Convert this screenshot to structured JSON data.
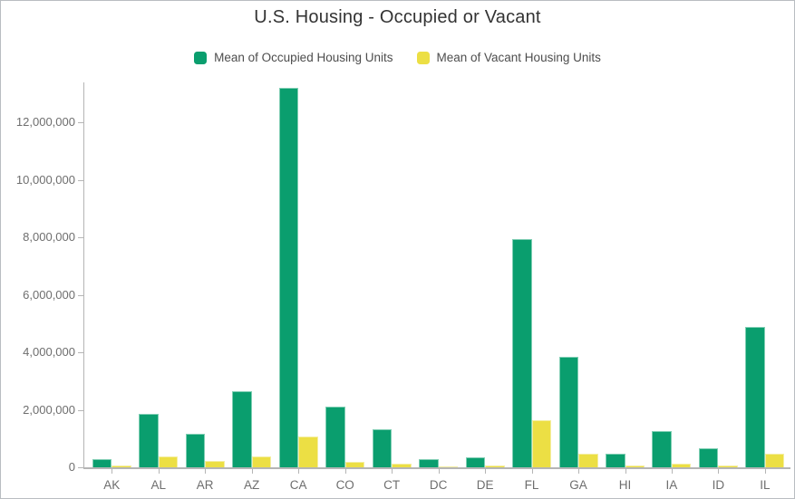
{
  "window": {
    "title": "U.S. Housing - Occupied or Vacant"
  },
  "chart_data": {
    "type": "bar",
    "title": "U.S. Housing - Occupied or Vacant",
    "categories": [
      "AK",
      "AL",
      "AR",
      "AZ",
      "CA",
      "CO",
      "CT",
      "DC",
      "DE",
      "FL",
      "GA",
      "HI",
      "IA",
      "ID",
      "IL"
    ],
    "series": [
      {
        "name": "Mean of Occupied Housing Units",
        "color": "#0a9e6e",
        "border_color": "#7fceb3",
        "values": [
          270000,
          1870000,
          1160000,
          2650000,
          13200000,
          2120000,
          1320000,
          270000,
          360000,
          7950000,
          3840000,
          470000,
          1260000,
          650000,
          4900000
        ]
      },
      {
        "name": "Mean of Vacant Housing Units",
        "color": "#ecdf44",
        "border_color": "#f4eea1",
        "values": [
          80000,
          370000,
          210000,
          390000,
          1080000,
          200000,
          120000,
          40000,
          60000,
          1630000,
          490000,
          70000,
          130000,
          80000,
          490000
        ]
      }
    ],
    "xlabel": "",
    "ylabel": "",
    "ylim": [
      0,
      13400000
    ],
    "yticks": [
      0,
      2000000,
      4000000,
      6000000,
      8000000,
      10000000,
      12000000
    ],
    "ytick_labels": [
      "0",
      "2,000,000",
      "4,000,000",
      "6,000,000",
      "8,000,000",
      "10,000,000",
      "12,000,000"
    ],
    "grid": "off",
    "legend_position": "top",
    "axis_color": "#b5b5b5",
    "tick_text_color": "#6e6e6e"
  }
}
